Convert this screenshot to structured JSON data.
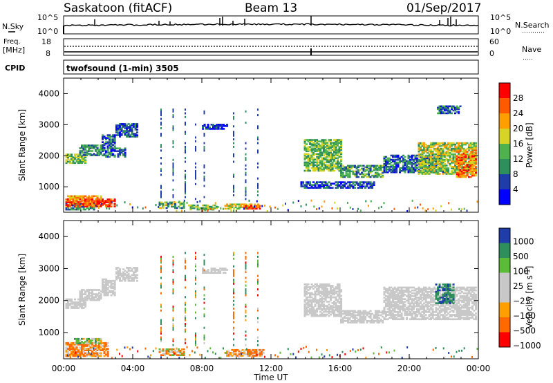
{
  "header": {
    "station": "Saskatoon (fitACF)",
    "beam": "Beam 13",
    "date": "01/Sep/2017"
  },
  "labels": {
    "nsky": "N.Sky",
    "freq_line1": "Freq.",
    "freq_line2": "[MHz]",
    "cpid": "CPID",
    "nsearch": "N.Search",
    "nave": "Nave",
    "cpid_value": "twofsound (1-min) 3505"
  },
  "top_axes": {
    "noise_left": [
      "10^5",
      "10^0"
    ],
    "noise_right": [
      "10^5",
      "10^0"
    ],
    "freq_left": [
      "18",
      "8"
    ],
    "nave_right": [
      "60",
      "0"
    ]
  },
  "colors": {
    "power": [
      "#0000ff",
      "#1f3ca8",
      "#2f8f5c",
      "#4fb24f",
      "#d7d327",
      "#ff9e00",
      "#ff5a00",
      "#ff0000"
    ],
    "velocity": [
      "#1f3ca8",
      "#2f8f5c",
      "#5cbc37",
      "#c8c8c8",
      "#c8c8c8",
      "#ff9e00",
      "#ff6a00",
      "#ff0000"
    ]
  },
  "chart_data": [
    {
      "type": "heatmap",
      "title": "Power",
      "ylabel": "Slant Range [km]",
      "ylim": [
        180,
        4500
      ],
      "yticks": [
        1000,
        2000,
        3000,
        4000
      ],
      "xlabel": "Time UT",
      "xlim": [
        "00:00",
        "24:00"
      ],
      "xticks": [
        "00:00",
        "04:00",
        "08:00",
        "12:00",
        "16:00",
        "20:00",
        "00:00"
      ],
      "colorbar": {
        "label": "Power [dB]",
        "ticks": [
          "28",
          "24",
          "20",
          "16",
          "12",
          "8",
          "4"
        ]
      },
      "regions": [
        {
          "t": [
            0.1,
            1.3
          ],
          "r": [
            1750,
            2050
          ],
          "v": 14
        },
        {
          "t": [
            0.9,
            2.2
          ],
          "r": [
            2000,
            2350
          ],
          "v": 10
        },
        {
          "t": [
            2.2,
            3.0
          ],
          "r": [
            2150,
            2650
          ],
          "v": 8
        },
        {
          "t": [
            3.0,
            4.3
          ],
          "r": [
            2600,
            3050
          ],
          "v": 6
        },
        {
          "t": [
            2.2,
            3.6
          ],
          "r": [
            1950,
            2250
          ],
          "v": 8
        },
        {
          "t": [
            0.1,
            2.2
          ],
          "r": [
            500,
            700
          ],
          "v": 22
        },
        {
          "t": [
            0.1,
            1.8
          ],
          "r": [
            250,
            450
          ],
          "v": 10
        },
        {
          "t": [
            0.1,
            3.0
          ],
          "r": [
            350,
            600
          ],
          "v": 28
        },
        {
          "t": [
            5.5,
            6.9
          ],
          "r": [
            300,
            500
          ],
          "v": 12
        },
        {
          "t": [
            7.2,
            8.8
          ],
          "r": [
            250,
            420
          ],
          "v": 14
        },
        {
          "t": [
            9.3,
            11.2
          ],
          "r": [
            280,
            430
          ],
          "v": 18
        },
        {
          "t": [
            10.4,
            11.3
          ],
          "r": [
            280,
            380
          ],
          "v": 28
        },
        {
          "t": [
            8.0,
            9.4
          ],
          "r": [
            2850,
            3000
          ],
          "v": 4
        },
        {
          "t": [
            13.9,
            16.0
          ],
          "r": [
            1500,
            2500
          ],
          "v": 14
        },
        {
          "t": [
            16.0,
            18.5
          ],
          "r": [
            1300,
            1700
          ],
          "v": 12
        },
        {
          "t": [
            13.7,
            18.0
          ],
          "r": [
            950,
            1150
          ],
          "v": 6
        },
        {
          "t": [
            18.5,
            22.0
          ],
          "r": [
            1450,
            2000
          ],
          "v": 8
        },
        {
          "t": [
            20.5,
            23.9
          ],
          "r": [
            1400,
            2400
          ],
          "v": 16
        },
        {
          "t": [
            22.7,
            23.9
          ],
          "r": [
            1300,
            2200
          ],
          "v": 24
        },
        {
          "t": [
            21.6,
            23.0
          ],
          "r": [
            3350,
            3600
          ],
          "v": 8
        }
      ]
    },
    {
      "type": "heatmap",
      "title": "Velocity",
      "ylabel": "Slant Range [km]",
      "ylim": [
        180,
        4500
      ],
      "yticks": [
        1000,
        2000,
        3000,
        4000
      ],
      "xlabel": "Time UT",
      "xlim": [
        "00:00",
        "24:00"
      ],
      "xticks": [
        "00:00",
        "04:00",
        "08:00",
        "12:00",
        "16:00",
        "20:00",
        "00:00"
      ],
      "colorbar": {
        "label": "Velocity [m s^-1]",
        "ticks": [
          "1000",
          "500",
          "100",
          "25",
          "−25",
          "−100",
          "−500",
          "−1000"
        ]
      },
      "regions": [
        {
          "t": [
            0.1,
            1.3
          ],
          "r": [
            1750,
            2050
          ],
          "v": 0
        },
        {
          "t": [
            0.9,
            2.2
          ],
          "r": [
            2000,
            2350
          ],
          "v": 0
        },
        {
          "t": [
            2.2,
            3.0
          ],
          "r": [
            2150,
            2650
          ],
          "v": 0
        },
        {
          "t": [
            3.0,
            4.3
          ],
          "r": [
            2600,
            3050
          ],
          "v": 0
        },
        {
          "t": [
            0.1,
            2.6
          ],
          "r": [
            250,
            700
          ],
          "v": -200
        },
        {
          "t": [
            0.6,
            2.2
          ],
          "r": [
            650,
            800
          ],
          "v": 150
        },
        {
          "t": [
            5.5,
            6.9
          ],
          "r": [
            280,
            500
          ],
          "v": -80
        },
        {
          "t": [
            9.3,
            11.5
          ],
          "r": [
            260,
            450
          ],
          "v": -200
        },
        {
          "t": [
            8.0,
            9.4
          ],
          "r": [
            2850,
            3000
          ],
          "v": 0
        },
        {
          "t": [
            13.9,
            16.0
          ],
          "r": [
            1500,
            2500
          ],
          "v": 0
        },
        {
          "t": [
            16.0,
            18.5
          ],
          "r": [
            1300,
            1700
          ],
          "v": 0
        },
        {
          "t": [
            18.5,
            23.9
          ],
          "r": [
            1400,
            2400
          ],
          "v": 0
        },
        {
          "t": [
            21.5,
            22.6
          ],
          "r": [
            1900,
            2500
          ],
          "v": 600
        }
      ]
    }
  ]
}
